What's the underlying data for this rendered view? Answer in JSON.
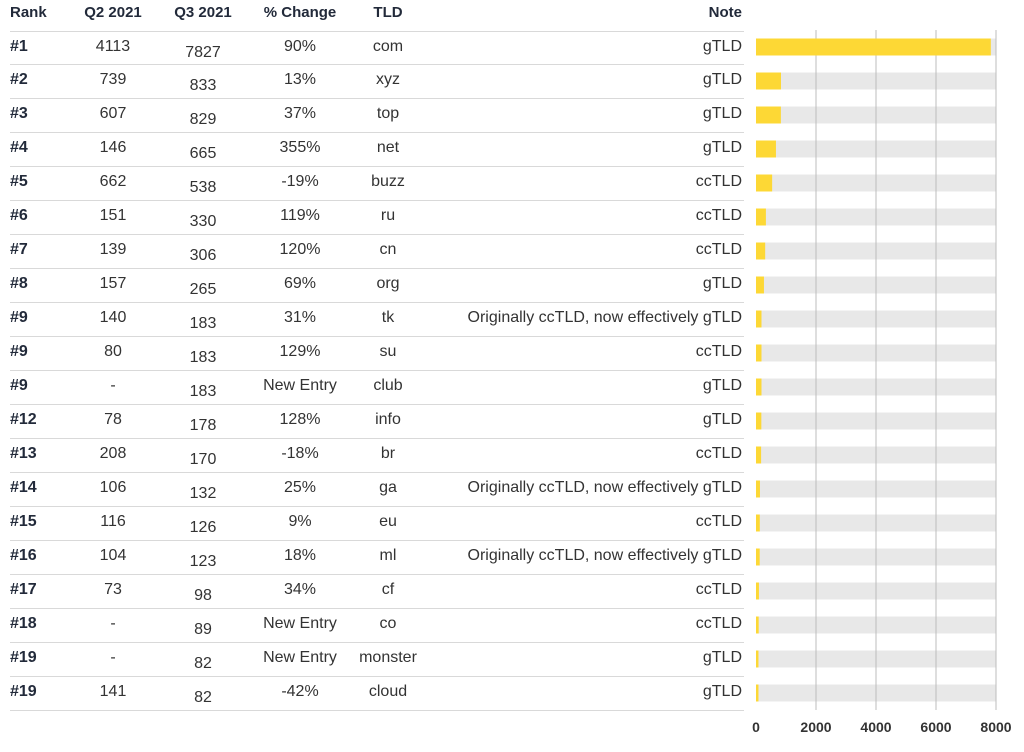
{
  "table": {
    "headers": {
      "rank": "Rank",
      "q2": "Q2 2021",
      "q3": "Q3 2021",
      "change": "% Change",
      "tld": "TLD",
      "note": "Note"
    },
    "rows": [
      {
        "rank": "#1",
        "q2": "4113",
        "q3": "7827",
        "change": "90%",
        "tld": "com",
        "note": "gTLD"
      },
      {
        "rank": "#2",
        "q2": "739",
        "q3": "833",
        "change": "13%",
        "tld": "xyz",
        "note": "gTLD"
      },
      {
        "rank": "#3",
        "q2": "607",
        "q3": "829",
        "change": "37%",
        "tld": "top",
        "note": "gTLD"
      },
      {
        "rank": "#4",
        "q2": "146",
        "q3": "665",
        "change": "355%",
        "tld": "net",
        "note": "gTLD"
      },
      {
        "rank": "#5",
        "q2": "662",
        "q3": "538",
        "change": "-19%",
        "tld": "buzz",
        "note": "ccTLD"
      },
      {
        "rank": "#6",
        "q2": "151",
        "q3": "330",
        "change": "119%",
        "tld": "ru",
        "note": "ccTLD"
      },
      {
        "rank": "#7",
        "q2": "139",
        "q3": "306",
        "change": "120%",
        "tld": "cn",
        "note": "ccTLD"
      },
      {
        "rank": "#8",
        "q2": "157",
        "q3": "265",
        "change": "69%",
        "tld": "org",
        "note": "gTLD"
      },
      {
        "rank": "#9",
        "q2": "140",
        "q3": "183",
        "change": "31%",
        "tld": "tk",
        "note": "Originally ccTLD, now effectively gTLD"
      },
      {
        "rank": "#9",
        "q2": "80",
        "q3": "183",
        "change": "129%",
        "tld": "su",
        "note": "ccTLD"
      },
      {
        "rank": "#9",
        "q2": "-",
        "q3": "183",
        "change": "New Entry",
        "tld": "club",
        "note": "gTLD"
      },
      {
        "rank": "#12",
        "q2": "78",
        "q3": "178",
        "change": "128%",
        "tld": "info",
        "note": "gTLD"
      },
      {
        "rank": "#13",
        "q2": "208",
        "q3": "170",
        "change": "-18%",
        "tld": "br",
        "note": "ccTLD"
      },
      {
        "rank": "#14",
        "q2": "106",
        "q3": "132",
        "change": "25%",
        "tld": "ga",
        "note": "Originally ccTLD, now effectively gTLD"
      },
      {
        "rank": "#15",
        "q2": "116",
        "q3": "126",
        "change": "9%",
        "tld": "eu",
        "note": "ccTLD"
      },
      {
        "rank": "#16",
        "q2": "104",
        "q3": "123",
        "change": "18%",
        "tld": "ml",
        "note": "Originally ccTLD, now effectively gTLD"
      },
      {
        "rank": "#17",
        "q2": "73",
        "q3": "98",
        "change": "34%",
        "tld": "cf",
        "note": "ccTLD"
      },
      {
        "rank": "#18",
        "q2": "-",
        "q3": "89",
        "change": "New Entry",
        "tld": "co",
        "note": "ccTLD"
      },
      {
        "rank": "#19",
        "q2": "-",
        "q3": "82",
        "change": "New Entry",
        "tld": "monster",
        "note": "gTLD"
      },
      {
        "rank": "#19",
        "q2": "141",
        "q3": "82",
        "change": "-42%",
        "tld": "cloud",
        "note": "gTLD"
      }
    ]
  },
  "chart_data": {
    "type": "bar",
    "orientation": "horizontal",
    "categories": [
      "com",
      "xyz",
      "top",
      "net",
      "buzz",
      "ru",
      "cn",
      "org",
      "tk",
      "su",
      "club",
      "info",
      "br",
      "ga",
      "eu",
      "ml",
      "cf",
      "co",
      "monster",
      "cloud"
    ],
    "values": [
      7827,
      833,
      829,
      665,
      538,
      330,
      306,
      265,
      183,
      183,
      183,
      178,
      170,
      132,
      126,
      123,
      98,
      89,
      82,
      82
    ],
    "xlim": [
      0,
      8000
    ],
    "xticks": [
      "0",
      "2000",
      "4000",
      "6000",
      "8000"
    ],
    "grid": true,
    "colors": {
      "bar": "#fdd835",
      "track": "#e8e8e8",
      "grid": "#bdbdbd"
    }
  }
}
